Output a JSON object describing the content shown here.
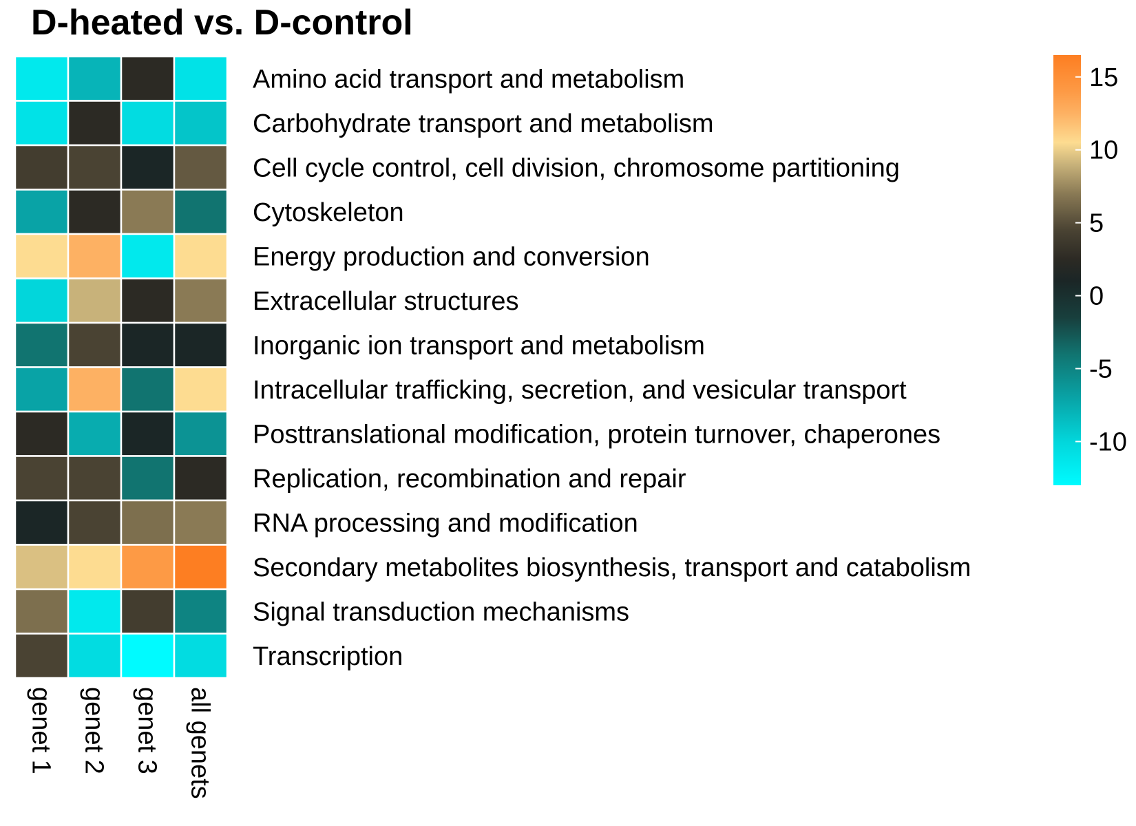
{
  "chart_data": {
    "type": "heatmap",
    "title": "D-heated vs. D-control",
    "columns": [
      "genet 1",
      "genet 2",
      "genet 3",
      "all genets"
    ],
    "rows": [
      "Amino acid transport and metabolism",
      "Carbohydrate transport and metabolism",
      "Cell cycle control, cell division, chromosome partitioning",
      "Cytoskeleton",
      "Energy production and conversion",
      "Extracellular structures",
      "Inorganic ion transport and metabolism",
      "Intracellular trafficking, secretion, and vesicular transport",
      "Posttranslational modification, protein turnover, chaperones",
      "Replication, recombination and repair",
      "RNA processing and modification",
      "Secondary metabolites biosynthesis, transport and catabolism",
      "Signal transduction mechanisms",
      "Transcription"
    ],
    "values": [
      [
        -11.5,
        -8,
        2.5,
        -11
      ],
      [
        -11,
        2.5,
        -10.5,
        -9
      ],
      [
        4,
        4.5,
        1,
        5.5
      ],
      [
        -7,
        2.5,
        7,
        -4
      ],
      [
        10.5,
        12.5,
        -11.5,
        10.5
      ],
      [
        -10,
        9,
        2.5,
        7
      ],
      [
        -4,
        4.5,
        1,
        1
      ],
      [
        -7,
        12.5,
        -4,
        10.5
      ],
      [
        2.5,
        -7.5,
        1,
        -6
      ],
      [
        4.5,
        4.5,
        -4,
        2.5
      ],
      [
        1,
        4.5,
        6.5,
        7
      ],
      [
        9.5,
        10.5,
        14,
        16.5
      ],
      [
        6.5,
        -11.5,
        4,
        -5
      ],
      [
        4.5,
        -10.5,
        -13,
        -10.5
      ]
    ],
    "legend": {
      "ticks": [
        "15",
        "10",
        "5",
        "0",
        "-5",
        "-10"
      ],
      "tick_values": [
        15,
        10,
        5,
        0,
        -5,
        -10
      ],
      "min": -13,
      "max": 16.5,
      "placement": "right"
    },
    "color_stops": [
      {
        "value": -13,
        "color": "#00fbff"
      },
      {
        "value": -10,
        "color": "#02d6db"
      },
      {
        "value": -7,
        "color": "#09a3a6"
      },
      {
        "value": -4,
        "color": "#117470"
      },
      {
        "value": -1.5,
        "color": "#183f3d"
      },
      {
        "value": 1,
        "color": "#1b2626"
      },
      {
        "value": 2.5,
        "color": "#2c2a24"
      },
      {
        "value": 4.5,
        "color": "#4a4333"
      },
      {
        "value": 7,
        "color": "#8a7a55"
      },
      {
        "value": 9,
        "color": "#c8b27a"
      },
      {
        "value": 10.5,
        "color": "#fddc91"
      },
      {
        "value": 12.5,
        "color": "#fdb163"
      },
      {
        "value": 14,
        "color": "#fd9a45"
      },
      {
        "value": 16.5,
        "color": "#fd7e22"
      }
    ],
    "grid_lines": true
  }
}
